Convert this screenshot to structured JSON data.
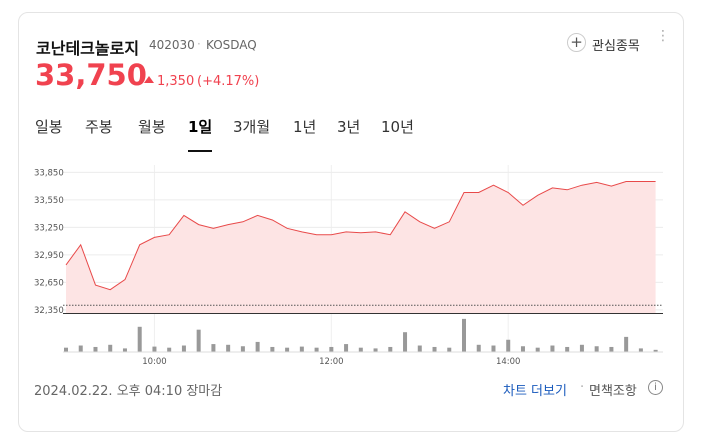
{
  "header": {
    "name": "코난테크놀로지",
    "code": "402030",
    "market": "KOSDAQ",
    "watch_button": "관심종목",
    "price": "33,750",
    "change": "1,350",
    "change_pct": "(+4.17%)"
  },
  "tabs": {
    "items": [
      "일봉",
      "주봉",
      "월봉",
      "1일",
      "3개월",
      "1년",
      "3년",
      "10년"
    ],
    "selected": 3
  },
  "chart_data": {
    "type": "line",
    "x": [
      "09:00",
      "09:10",
      "09:20",
      "09:30",
      "09:40",
      "09:50",
      "10:00",
      "10:10",
      "10:20",
      "10:30",
      "10:40",
      "10:50",
      "11:00",
      "11:10",
      "11:20",
      "11:30",
      "11:40",
      "11:50",
      "12:00",
      "12:10",
      "12:20",
      "12:30",
      "12:40",
      "12:50",
      "13:00",
      "13:10",
      "13:20",
      "13:30",
      "13:40",
      "13:50",
      "14:00",
      "14:10",
      "14:20",
      "14:30",
      "14:40",
      "14:50",
      "15:00",
      "15:10",
      "15:20",
      "15:30",
      "15:40"
    ],
    "series": [
      {
        "color": "#e84a4a",
        "fill": "#fde4e4",
        "values": [
          32840,
          33060,
          32620,
          32570,
          32680,
          33060,
          33140,
          33170,
          33380,
          33280,
          33240,
          33280,
          33310,
          33380,
          33330,
          33240,
          33200,
          33170,
          33170,
          33200,
          33190,
          33200,
          33170,
          33420,
          33310,
          33240,
          33310,
          33630,
          33630,
          33710,
          33630,
          33490,
          33600,
          33680,
          33660,
          33710,
          33740,
          33700,
          33750,
          33750,
          33750
        ]
      }
    ],
    "xlim": [
      "09:00",
      "15:45"
    ],
    "xticks": [
      "10:00",
      "12:00",
      "14:00"
    ],
    "ylim": [
      32310,
      33930
    ],
    "yticks": [
      {
        "value": 33850,
        "label": "33,850"
      },
      {
        "value": 33550,
        "label": "33,550"
      },
      {
        "value": 33250,
        "label": "33,250"
      },
      {
        "value": 32950,
        "label": "32,950"
      },
      {
        "value": 32650,
        "label": "32,650"
      },
      {
        "value": 32350,
        "label": "32,350"
      }
    ],
    "base_value": 32400,
    "grid": true,
    "volume": {
      "color": "#999999",
      "ylim": [
        0,
        100
      ],
      "values": [
        12,
        18,
        14,
        20,
        10,
        70,
        15,
        12,
        18,
        62,
        22,
        20,
        16,
        28,
        14,
        12,
        15,
        12,
        14,
        22,
        12,
        10,
        14,
        55,
        18,
        14,
        12,
        92,
        20,
        18,
        34,
        16,
        12,
        18,
        14,
        20,
        16,
        14,
        42,
        10,
        6
      ]
    }
  },
  "footer": {
    "status": "2024.02.22. 오후 04:10 장마감",
    "more": "차트 더보기",
    "disclaimer": "면책조항"
  }
}
